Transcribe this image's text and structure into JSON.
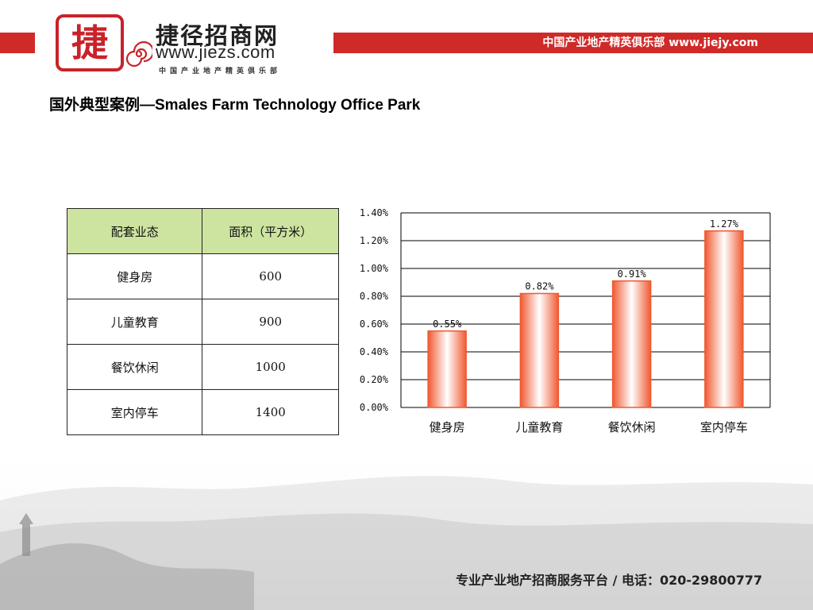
{
  "header": {
    "logo_char": "捷",
    "brand_name": "捷径招商网",
    "brand_url": "www.jiezs.com",
    "brand_sub": "中国产业地产精英俱乐部",
    "slogan": "中国产业地产精英俱乐部 www.jiejy.com",
    "accent_color": "#cf2a27"
  },
  "title": "国外典型案例—Smales Farm Technology Office Park",
  "table": {
    "headers": [
      "配套业态",
      "面积（平方米）"
    ],
    "rows": [
      [
        "健身房",
        "600"
      ],
      [
        "儿童教育",
        "900"
      ],
      [
        "餐饮休闲",
        "1000"
      ],
      [
        "室内停车",
        "1400"
      ]
    ],
    "header_color": "#cde4a0"
  },
  "chart_data": {
    "type": "bar",
    "categories": [
      "健身房",
      "儿童教育",
      "餐饮休闲",
      "室内停车"
    ],
    "values": [
      0.55,
      0.82,
      0.91,
      1.27
    ],
    "data_labels": [
      "0.55%",
      "0.82%",
      "0.91%",
      "1.27%"
    ],
    "yticks": [
      "0.00%",
      "0.20%",
      "0.40%",
      "0.60%",
      "0.80%",
      "1.00%",
      "1.20%",
      "1.40%"
    ],
    "ylim": [
      0,
      1.4
    ],
    "grid": true,
    "bar_color": "#f05a32",
    "title": "",
    "xlabel": "",
    "ylabel": ""
  },
  "footer": {
    "text": "专业产业地产招商服务平台 / 电话：020-29800777"
  }
}
